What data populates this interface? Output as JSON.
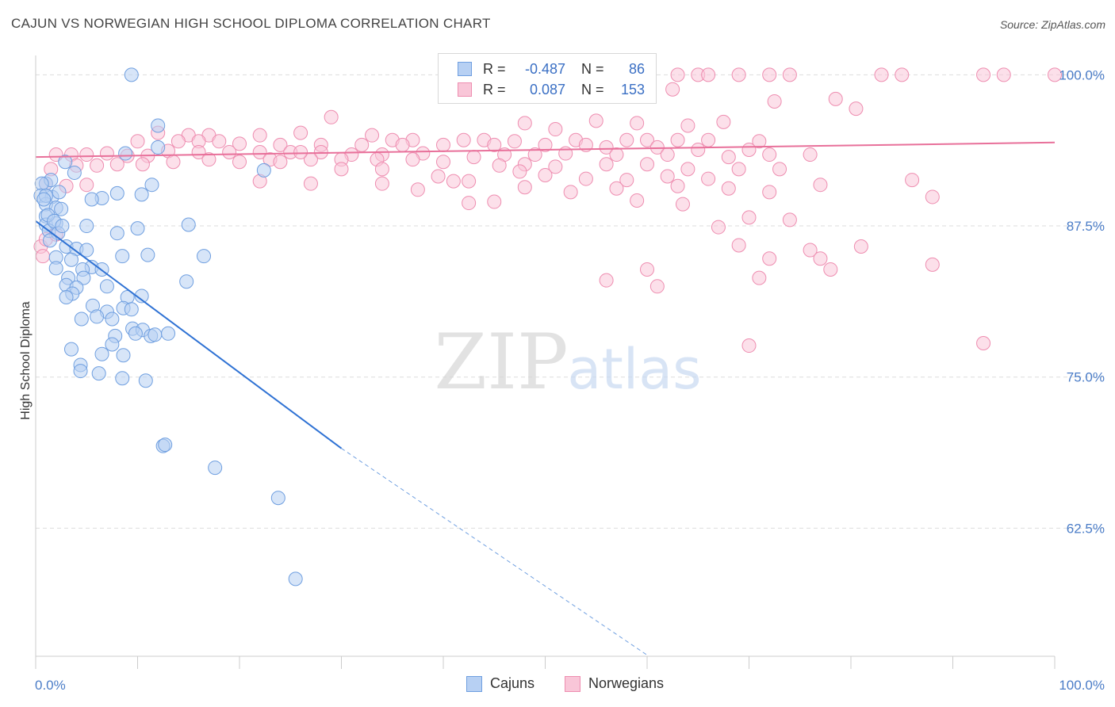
{
  "title": "CAJUN VS NORWEGIAN HIGH SCHOOL DIPLOMA CORRELATION CHART",
  "source": "Source: ZipAtlas.com",
  "watermark": {
    "zip": "ZIP",
    "atlas": "atlas"
  },
  "legend_top": {
    "rows": [
      {
        "r_label": "R =",
        "r_value": "-0.487",
        "n_label": "N =",
        "n_value": "86",
        "color": "#6f9fe0",
        "fill": "#b7d0f3"
      },
      {
        "r_label": "R =",
        "r_value": "0.087",
        "n_label": "N =",
        "n_value": "153",
        "color": "#ee8db0",
        "fill": "#f9c6d8"
      }
    ]
  },
  "legend_bottom": [
    {
      "label": "Cajuns",
      "color": "#6f9fe0",
      "fill": "#b7d0f3"
    },
    {
      "label": "Norwegians",
      "color": "#ee8db0",
      "fill": "#f9c6d8"
    }
  ],
  "chart_data": {
    "type": "scatter",
    "title": "CAJUN VS NORWEGIAN HIGH SCHOOL DIPLOMA CORRELATION CHART",
    "xlabel": "",
    "ylabel": "High School Diploma",
    "xlim": [
      0,
      100
    ],
    "ylim": [
      51.9,
      101.6
    ],
    "x_tick_labels": [
      "0.0%",
      "100.0%"
    ],
    "y_tick_labels": [
      "100.0%",
      "87.5%",
      "75.0%",
      "62.5%"
    ],
    "y_ticks": [
      100,
      87.5,
      75,
      62.5
    ],
    "grid": true,
    "legend_position": "top-center",
    "series": [
      {
        "name": "Cajuns",
        "color": "#6f9fe0",
        "fill": "#b7d0f3",
        "trend": {
          "x": [
            0,
            30
          ],
          "y": [
            87.9,
            69.1
          ],
          "dashed_to": [
            60,
            52.0
          ]
        },
        "points": [
          [
            9.4,
            100
          ],
          [
            12,
            95.8
          ],
          [
            1,
            91
          ],
          [
            1.5,
            91.3
          ],
          [
            0.6,
            91
          ],
          [
            0.5,
            90
          ],
          [
            1.6,
            89.9
          ],
          [
            1,
            89.3
          ],
          [
            2,
            89
          ],
          [
            2.5,
            88.9
          ],
          [
            1,
            88.3
          ],
          [
            1,
            87.6
          ],
          [
            2,
            87.7
          ],
          [
            1.3,
            87.1
          ],
          [
            2.2,
            86.9
          ],
          [
            5,
            87.5
          ],
          [
            8,
            86.9
          ],
          [
            10,
            87.3
          ],
          [
            15,
            87.6
          ],
          [
            3,
            85.8
          ],
          [
            4,
            85.6
          ],
          [
            5,
            85.5
          ],
          [
            3.5,
            84.7
          ],
          [
            2,
            84.9
          ],
          [
            5.5,
            84.1
          ],
          [
            8.5,
            85
          ],
          [
            11,
            85.1
          ],
          [
            16.5,
            85
          ],
          [
            2,
            84
          ],
          [
            3.2,
            83.2
          ],
          [
            4.6,
            83.9
          ],
          [
            6.5,
            83.9
          ],
          [
            4.7,
            83.2
          ],
          [
            3,
            82.6
          ],
          [
            4,
            82.4
          ],
          [
            7,
            82.5
          ],
          [
            14.8,
            82.9
          ],
          [
            3.6,
            81.9
          ],
          [
            9,
            81.6
          ],
          [
            10.4,
            81.7
          ],
          [
            3,
            81.6
          ],
          [
            5.6,
            80.9
          ],
          [
            8.6,
            80.7
          ],
          [
            9.4,
            80.6
          ],
          [
            7,
            80.4
          ],
          [
            6,
            80
          ],
          [
            4.5,
            79.8
          ],
          [
            7.5,
            79.8
          ],
          [
            9.5,
            79
          ],
          [
            10.5,
            78.9
          ],
          [
            7.8,
            78.4
          ],
          [
            9.8,
            78.6
          ],
          [
            11.3,
            78.4
          ],
          [
            11.7,
            78.5
          ],
          [
            13,
            78.6
          ],
          [
            7.5,
            77.7
          ],
          [
            3.5,
            77.3
          ],
          [
            6.5,
            76.9
          ],
          [
            8.6,
            76.8
          ],
          [
            4.4,
            76
          ],
          [
            4.4,
            75.5
          ],
          [
            6.2,
            75.3
          ],
          [
            8.5,
            74.9
          ],
          [
            10.8,
            74.7
          ],
          [
            12.5,
            69.3
          ],
          [
            12.7,
            69.4
          ],
          [
            17.6,
            67.5
          ],
          [
            23.8,
            65
          ],
          [
            25.5,
            58.3
          ],
          [
            1,
            90
          ],
          [
            2.3,
            90.3
          ],
          [
            6.5,
            89.8
          ],
          [
            8,
            90.2
          ],
          [
            10.4,
            90.1
          ],
          [
            11.4,
            90.9
          ],
          [
            3.8,
            91.9
          ],
          [
            2.9,
            92.8
          ],
          [
            8.8,
            93.5
          ],
          [
            22.4,
            92.1
          ],
          [
            5.5,
            89.7
          ],
          [
            12,
            94
          ],
          [
            1.2,
            88.4
          ],
          [
            1.8,
            87.9
          ],
          [
            2.6,
            87.5
          ],
          [
            0.8,
            89.7
          ],
          [
            1.4,
            86.3
          ]
        ]
      },
      {
        "name": "Norwegians",
        "color": "#ee8db0",
        "fill": "#f9c6d8",
        "trend": {
          "x": [
            0,
            100
          ],
          "y": [
            93.2,
            94.4
          ]
        },
        "points": [
          [
            60,
            100
          ],
          [
            63,
            100
          ],
          [
            65,
            100
          ],
          [
            66,
            100
          ],
          [
            69,
            100
          ],
          [
            72,
            100
          ],
          [
            74,
            100
          ],
          [
            83,
            100
          ],
          [
            85,
            100
          ],
          [
            93,
            100
          ],
          [
            95,
            100
          ],
          [
            100,
            100
          ],
          [
            62.5,
            98.8
          ],
          [
            72.5,
            97.8
          ],
          [
            78.5,
            98
          ],
          [
            80.5,
            97.2
          ],
          [
            29,
            96.5
          ],
          [
            48,
            96
          ],
          [
            51,
            95.5
          ],
          [
            55,
            96.2
          ],
          [
            59,
            96
          ],
          [
            64,
            95.8
          ],
          [
            67.5,
            96.1
          ],
          [
            12,
            95.2
          ],
          [
            15,
            95
          ],
          [
            17,
            95
          ],
          [
            22,
            95
          ],
          [
            26,
            95.2
          ],
          [
            33,
            95
          ],
          [
            35,
            94.6
          ],
          [
            37,
            94.6
          ],
          [
            42,
            94.6
          ],
          [
            44,
            94.6
          ],
          [
            47,
            94.5
          ],
          [
            53,
            94.6
          ],
          [
            58,
            94.6
          ],
          [
            60,
            94.6
          ],
          [
            63,
            94.6
          ],
          [
            66,
            94.6
          ],
          [
            71,
            94.5
          ],
          [
            10,
            94.5
          ],
          [
            14,
            94.5
          ],
          [
            16,
            94.5
          ],
          [
            18,
            94.5
          ],
          [
            20,
            94.3
          ],
          [
            24,
            94.2
          ],
          [
            28,
            94.2
          ],
          [
            32,
            94.2
          ],
          [
            36,
            94.2
          ],
          [
            40,
            94.2
          ],
          [
            45,
            94.2
          ],
          [
            50,
            94.2
          ],
          [
            54,
            94.2
          ],
          [
            56,
            94
          ],
          [
            61,
            94
          ],
          [
            65,
            93.8
          ],
          [
            70,
            93.8
          ],
          [
            2,
            93.4
          ],
          [
            3.5,
            93.4
          ],
          [
            5,
            93.4
          ],
          [
            7,
            93.5
          ],
          [
            9,
            93.3
          ],
          [
            11,
            93.3
          ],
          [
            13,
            93.7
          ],
          [
            16,
            93.6
          ],
          [
            19,
            93.6
          ],
          [
            22,
            93.6
          ],
          [
            25,
            93.6
          ],
          [
            28,
            93.6
          ],
          [
            31,
            93.4
          ],
          [
            34,
            93.4
          ],
          [
            38,
            93.5
          ],
          [
            43,
            93.2
          ],
          [
            46,
            93.4
          ],
          [
            49,
            93.4
          ],
          [
            52,
            93.5
          ],
          [
            57,
            93.4
          ],
          [
            62,
            93.4
          ],
          [
            68,
            93.2
          ],
          [
            72,
            93.4
          ],
          [
            76,
            93.4
          ],
          [
            1.5,
            92.2
          ],
          [
            4,
            92.5
          ],
          [
            6,
            92.5
          ],
          [
            8,
            92.6
          ],
          [
            10.5,
            92.6
          ],
          [
            13.5,
            92.8
          ],
          [
            17,
            93
          ],
          [
            20,
            92.8
          ],
          [
            23,
            93
          ],
          [
            27,
            93
          ],
          [
            30,
            93
          ],
          [
            33.5,
            93
          ],
          [
            37,
            93
          ],
          [
            40,
            92.8
          ],
          [
            45.5,
            92.5
          ],
          [
            48,
            92.6
          ],
          [
            51,
            92.4
          ],
          [
            56,
            92.6
          ],
          [
            60,
            92.6
          ],
          [
            64,
            92.2
          ],
          [
            69,
            92.2
          ],
          [
            73,
            92.2
          ],
          [
            39.5,
            91.6
          ],
          [
            42.5,
            91.2
          ],
          [
            47.5,
            92
          ],
          [
            50,
            91.7
          ],
          [
            54,
            91.4
          ],
          [
            58,
            91.3
          ],
          [
            62,
            91.6
          ],
          [
            66,
            91.4
          ],
          [
            1,
            91
          ],
          [
            3,
            90.8
          ],
          [
            5,
            90.9
          ],
          [
            22,
            91.2
          ],
          [
            27,
            91
          ],
          [
            34,
            91
          ],
          [
            41,
            91.2
          ],
          [
            48,
            90.7
          ],
          [
            52.5,
            90.3
          ],
          [
            57,
            90.6
          ],
          [
            63,
            90.8
          ],
          [
            68,
            90.6
          ],
          [
            72,
            90.3
          ],
          [
            77,
            90.9
          ],
          [
            86,
            91.3
          ],
          [
            88,
            89.9
          ],
          [
            59,
            89.6
          ],
          [
            63.5,
            89.3
          ],
          [
            70,
            88.2
          ],
          [
            74,
            88
          ],
          [
            67,
            87.4
          ],
          [
            76,
            85.5
          ],
          [
            69,
            85.9
          ],
          [
            72,
            84.8
          ],
          [
            77,
            84.8
          ],
          [
            81,
            85.8
          ],
          [
            88,
            84.3
          ],
          [
            60,
            83.9
          ],
          [
            71,
            83.2
          ],
          [
            56,
            83
          ],
          [
            61,
            82.5
          ],
          [
            78,
            83.9
          ],
          [
            70,
            77.6
          ],
          [
            93,
            77.8
          ],
          [
            0.5,
            85.8
          ],
          [
            1,
            86.4
          ],
          [
            0.7,
            85
          ],
          [
            2,
            86.8
          ],
          [
            37.5,
            90.5
          ],
          [
            42.5,
            89.4
          ],
          [
            45,
            89.5
          ],
          [
            30,
            92.2
          ],
          [
            34,
            92.2
          ],
          [
            26,
            93.6
          ],
          [
            24,
            92.8
          ]
        ]
      }
    ]
  }
}
